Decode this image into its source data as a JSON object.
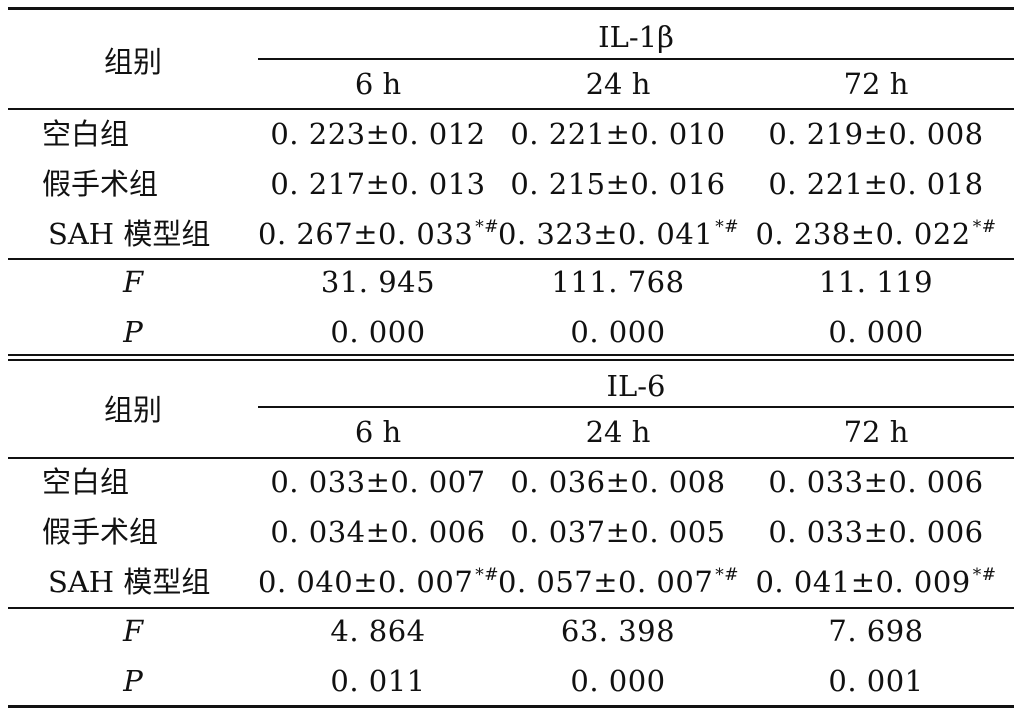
{
  "sections": [
    {
      "group_header": "组别",
      "indicator": "IL-1β",
      "times": [
        "6 h",
        "24 h",
        "72 h"
      ],
      "rows": [
        {
          "label": "空白组",
          "values": [
            "0. 223±0. 012",
            "0. 221±0. 010",
            "0. 219±0. 008"
          ],
          "marks": [
            "",
            "",
            ""
          ]
        },
        {
          "label": "假手术组",
          "values": [
            "0. 217±0. 013",
            "0. 215±0. 016",
            "0. 221±0. 018"
          ],
          "marks": [
            "",
            "",
            ""
          ]
        },
        {
          "label": "SAH 模型组",
          "values": [
            "0. 267±0. 033",
            "0. 323±0. 041",
            "0. 238±0. 022"
          ],
          "marks": [
            "*#",
            "*#",
            "*#"
          ]
        }
      ],
      "stats": [
        {
          "label": "F",
          "values": [
            "31. 945",
            "111. 768",
            "11. 119"
          ]
        },
        {
          "label": "P",
          "values": [
            "0. 000",
            "0. 000",
            "0. 000"
          ]
        }
      ]
    },
    {
      "group_header": "组别",
      "indicator": "IL-6",
      "times": [
        "6 h",
        "24 h",
        "72 h"
      ],
      "rows": [
        {
          "label": "空白组",
          "values": [
            "0. 033±0. 007",
            "0. 036±0. 008",
            "0. 033±0. 006"
          ],
          "marks": [
            "",
            "",
            ""
          ]
        },
        {
          "label": "假手术组",
          "values": [
            "0. 034±0. 006",
            "0. 037±0. 005",
            "0. 033±0. 006"
          ],
          "marks": [
            "",
            "",
            ""
          ]
        },
        {
          "label": "SAH 模型组",
          "values": [
            "0. 040±0. 007",
            "0. 057±0. 007",
            "0. 041±0. 009"
          ],
          "marks": [
            "*#",
            "*#",
            "*#"
          ]
        }
      ],
      "stats": [
        {
          "label": "F",
          "values": [
            "4. 864",
            "63. 398",
            "7. 698"
          ]
        },
        {
          "label": "P",
          "values": [
            "0. 011",
            "0. 000",
            "0. 001"
          ]
        }
      ]
    }
  ]
}
